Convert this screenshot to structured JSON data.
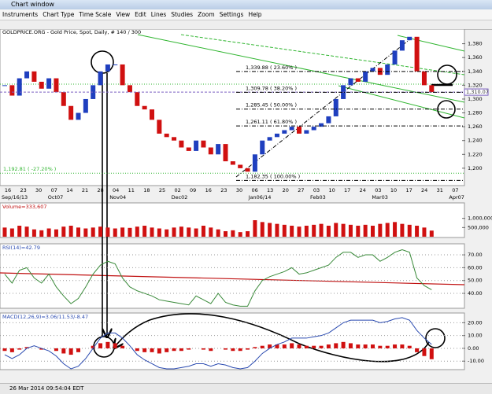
{
  "window": {
    "title": "Chart window",
    "menu": [
      "Instruments",
      "Chart Type",
      "Time Scale",
      "View",
      "Edit",
      "Lines",
      "Studies",
      "Zoom",
      "Settings",
      "Help"
    ],
    "status": "26 Mar 2014 09:54:04 EDT"
  },
  "chart_data": [
    {
      "type": "candlestick",
      "title": "GOLDPRICE.ORG - Gold Price, Spot, Daily, # 140 / 300",
      "values": [
        1320,
        1305,
        1330,
        1340,
        1325,
        1315,
        1330,
        1310,
        1290,
        1270,
        1280,
        1300,
        1320,
        1340,
        1350,
        1350,
        1320,
        1310,
        1290,
        1285,
        1270,
        1250,
        1245,
        1240,
        1230,
        1225,
        1240,
        1230,
        1220,
        1235,
        1210,
        1205,
        1200,
        1195,
        1220,
        1240,
        1245,
        1250,
        1255,
        1260,
        1250,
        1255,
        1260,
        1265,
        1275,
        1300,
        1320,
        1330,
        1325,
        1340,
        1345,
        1335,
        1350,
        1370,
        1385,
        1390,
        1340,
        1320,
        1310.07
      ],
      "color_up": "#1f3fbf",
      "color_down": "#d01010",
      "last_label": "1,310.07",
      "ylim": [
        1176,
        1400
      ],
      "yticks": [
        {
          "value": 1200,
          "label": "1,200"
        },
        {
          "value": 1220,
          "label": "1,220"
        },
        {
          "value": 1240,
          "label": "1,240"
        },
        {
          "value": 1260,
          "label": "1,260"
        },
        {
          "value": 1280,
          "label": "1,280"
        },
        {
          "value": 1300,
          "label": "1,300"
        },
        {
          "value": 1320,
          "label": "1,320"
        },
        {
          "value": 1340,
          "label": "1,340"
        },
        {
          "value": 1360,
          "label": "1,360"
        },
        {
          "value": 1380,
          "label": "1,380"
        }
      ],
      "x_labels": [
        "16",
        "23",
        "30",
        "07",
        "14",
        "21",
        "28",
        "04",
        "11",
        "18",
        "25",
        "02",
        "09",
        "16",
        "23",
        "30",
        "06",
        "13",
        "20",
        "27",
        "03",
        "10",
        "17",
        "24",
        "03",
        "10",
        "17",
        "24",
        "31",
        "07"
      ],
      "month_labels": [
        "Sep/16/13",
        "Oct07",
        "Nov04",
        "Dec02",
        "Jan06/14",
        "Feb03",
        "Mar03",
        "Apr07"
      ],
      "fib_levels": [
        {
          "value": 1339.88,
          "label": "1,339.88 ( 23.60% )"
        },
        {
          "value": 1309.78,
          "label": "1,309.78 ( 38.20% )"
        },
        {
          "value": 1285.45,
          "label": "1,285.45 ( 50.00% )"
        },
        {
          "value": 1261.11,
          "label": "1,261.11 ( 61.80% )"
        },
        {
          "value": 1182.35,
          "label": "1,182.35 ( 100.00% )"
        }
      ],
      "extension": {
        "value": 1192.81,
        "label": "1,192.81 ( -27.20% )"
      }
    },
    {
      "type": "bar",
      "title": "Volume=333,607",
      "color": "#d01010",
      "values": [
        500000,
        450000,
        600000,
        550000,
        400000,
        350000,
        450000,
        400000,
        550000,
        600000,
        500000,
        450000,
        500000,
        550000,
        500000,
        450000,
        500000,
        480000,
        550000,
        600000,
        500000,
        450000,
        400000,
        500000,
        550000,
        500000,
        450000,
        600000,
        500000,
        400000,
        300000,
        350000,
        250000,
        300000,
        900000,
        800000,
        750000,
        700000,
        650000,
        600000,
        550000,
        600000,
        650000,
        700000,
        600000,
        750000,
        700000,
        650000,
        600000,
        650000,
        600000,
        700000,
        750000,
        800000,
        700000,
        650000,
        600000,
        500000,
        333607
      ],
      "ylim": [
        0,
        1800000
      ],
      "yticks": [
        {
          "value": 500000,
          "label": "500,000"
        },
        {
          "value": 1000000,
          "label": "1,000,000"
        }
      ]
    },
    {
      "type": "line",
      "title": "RSI(14)=42.79",
      "color": "#3a8a3a",
      "values": [
        55,
        48,
        58,
        60,
        52,
        48,
        55,
        45,
        38,
        32,
        36,
        45,
        55,
        62,
        65,
        63,
        52,
        45,
        42,
        40,
        38,
        35,
        34,
        33,
        32,
        31,
        38,
        35,
        32,
        40,
        33,
        31,
        30,
        30,
        42,
        50,
        53,
        55,
        57,
        60,
        55,
        56,
        58,
        60,
        62,
        68,
        72,
        72,
        68,
        70,
        70,
        65,
        68,
        72,
        74,
        72,
        52,
        46,
        42.79
      ],
      "ylim": [
        29,
        78
      ],
      "yticks": [
        {
          "value": 40,
          "label": "40.00"
        },
        {
          "value": 50,
          "label": "50.00"
        },
        {
          "value": 60,
          "label": "60.00"
        },
        {
          "value": 70,
          "label": "70.00"
        }
      ]
    },
    {
      "type": "macd",
      "title": "MACD(12,26,9)=3.06/11.53/-8.47",
      "color": "#d01010",
      "line_color": "#2a4ab0",
      "values": [
        -2,
        -3,
        -1,
        1,
        0,
        -1,
        0,
        -2,
        -4,
        -5,
        -3,
        0,
        2,
        4,
        5,
        4,
        2,
        0,
        -2,
        -3,
        -3,
        -4,
        -3,
        -2,
        -2,
        -1,
        0,
        -1,
        -2,
        0,
        -1,
        -2,
        -2,
        -1,
        1,
        2,
        3,
        3,
        3,
        4,
        3,
        2,
        2,
        2,
        3,
        4,
        5,
        4,
        3,
        3,
        3,
        2,
        2,
        3,
        3,
        2,
        -3,
        -6,
        -8.47
      ],
      "line": [
        -5,
        -8,
        -5,
        0,
        2,
        0,
        -2,
        -6,
        -12,
        -16,
        -14,
        -8,
        0,
        8,
        12,
        12,
        8,
        2,
        -5,
        -9,
        -12,
        -15,
        -16,
        -16,
        -15,
        -14,
        -12,
        -12,
        -14,
        -12,
        -13,
        -15,
        -16,
        -15,
        -10,
        -4,
        0,
        3,
        5,
        8,
        8,
        8,
        9,
        10,
        12,
        16,
        20,
        22,
        22,
        22,
        22,
        20,
        21,
        23,
        24,
        22,
        14,
        8,
        3.06
      ],
      "ylim": [
        -16,
        27
      ],
      "yticks": [
        {
          "value": -10,
          "label": "-10.00"
        },
        {
          "value": 0,
          "label": "0.00"
        },
        {
          "value": 10,
          "label": "10.00"
        },
        {
          "value": 20,
          "label": "20.00"
        }
      ]
    }
  ]
}
